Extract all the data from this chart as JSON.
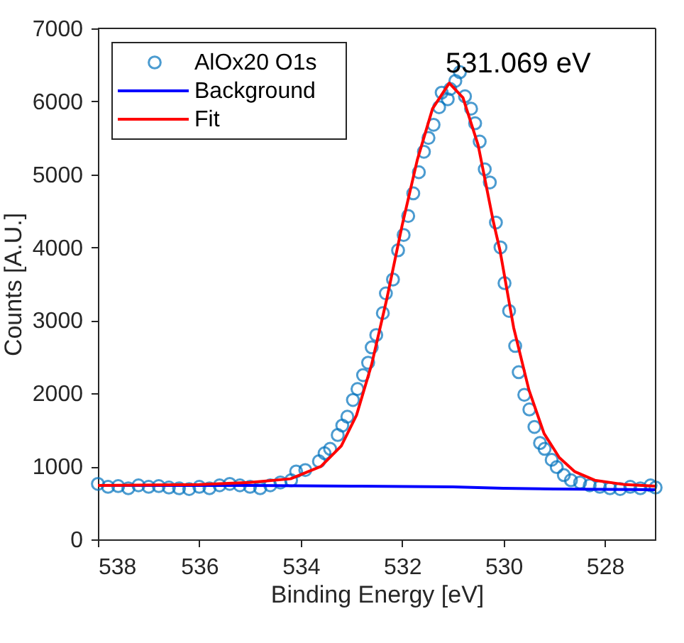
{
  "chart_data": {
    "type": "scatter",
    "xlabel": "Binding Energy [eV]",
    "ylabel": "Counts [A.U.]",
    "xlim": [
      538,
      527
    ],
    "xticks": [
      538,
      536,
      534,
      532,
      530,
      528
    ],
    "ylim": [
      0,
      7000
    ],
    "yticks": [
      0,
      1000,
      2000,
      3000,
      4000,
      5000,
      6000,
      7000
    ],
    "grid": false,
    "legend": "top left",
    "annotations": [
      "531.069 eV"
    ],
    "series": [
      {
        "name": "AlOx20 O1s",
        "marker": "circle",
        "color": "#0072bd",
        "x": [
          538.0,
          537.8,
          537.6,
          537.4,
          537.2,
          537.0,
          536.8,
          536.6,
          536.4,
          536.2,
          536.0,
          535.8,
          535.6,
          535.4,
          535.2,
          535.0,
          534.8,
          534.6,
          534.4,
          534.19,
          534.09,
          533.91,
          533.64,
          533.53,
          533.42,
          533.27,
          533.18,
          533.08,
          532.97,
          532.88,
          532.77,
          532.67,
          532.6,
          532.51,
          532.38,
          532.32,
          532.18,
          532.08,
          531.97,
          531.88,
          531.78,
          531.67,
          531.57,
          531.48,
          531.38,
          531.27,
          531.22,
          531.1,
          531.05,
          530.95,
          530.86,
          530.76,
          530.64,
          530.56,
          530.47,
          530.37,
          530.27,
          530.15,
          530.06,
          529.98,
          529.89,
          529.77,
          529.7,
          529.59,
          529.49,
          529.39,
          529.28,
          529.19,
          529.05,
          528.95,
          528.81,
          528.67,
          528.49,
          528.3,
          528.1,
          527.9,
          527.7,
          527.5,
          527.3,
          527.1,
          527.0
        ],
        "values": [
          760,
          720,
          730,
          700,
          740,
          720,
          730,
          710,
          700,
          690,
          720,
          700,
          740,
          760,
          740,
          720,
          700,
          740,
          780,
          810,
          930,
          950,
          1070,
          1180,
          1240,
          1430,
          1560,
          1680,
          1910,
          2060,
          2250,
          2420,
          2630,
          2800,
          3100,
          3370,
          3560,
          3960,
          4170,
          4430,
          4740,
          5030,
          5310,
          5500,
          5680,
          5920,
          6120,
          6030,
          6170,
          6280,
          6400,
          6070,
          5900,
          5700,
          5450,
          5070,
          4890,
          4340,
          4000,
          3510,
          3130,
          2650,
          2290,
          1980,
          1780,
          1540,
          1320,
          1240,
          1090,
          990,
          880,
          810,
          780,
          740,
          720,
          700,
          690,
          720,
          700,
          740,
          710
        ]
      },
      {
        "name": "Background",
        "type": "line",
        "color": "#0000ff",
        "x": [
          538,
          535,
          533,
          531,
          530,
          529,
          527
        ],
        "values": [
          740,
          740,
          730,
          720,
          700,
          690,
          680
        ]
      },
      {
        "name": "Fit",
        "type": "line",
        "color": "#ff0000",
        "x": [
          538,
          536,
          535,
          534.2,
          533.6,
          533.2,
          532.9,
          532.6,
          532.3,
          532.0,
          531.7,
          531.4,
          531.07,
          530.8,
          530.5,
          530.2,
          530.07,
          529.8,
          529.5,
          529.2,
          528.9,
          528.6,
          528.2,
          527.6,
          527
        ],
        "values": [
          740,
          750,
          780,
          830,
          1000,
          1280,
          1700,
          2400,
          3300,
          4300,
          5200,
          5900,
          6250,
          6050,
          5400,
          4350,
          3960,
          2900,
          2050,
          1450,
          1120,
          930,
          810,
          750,
          730
        ]
      }
    ]
  }
}
